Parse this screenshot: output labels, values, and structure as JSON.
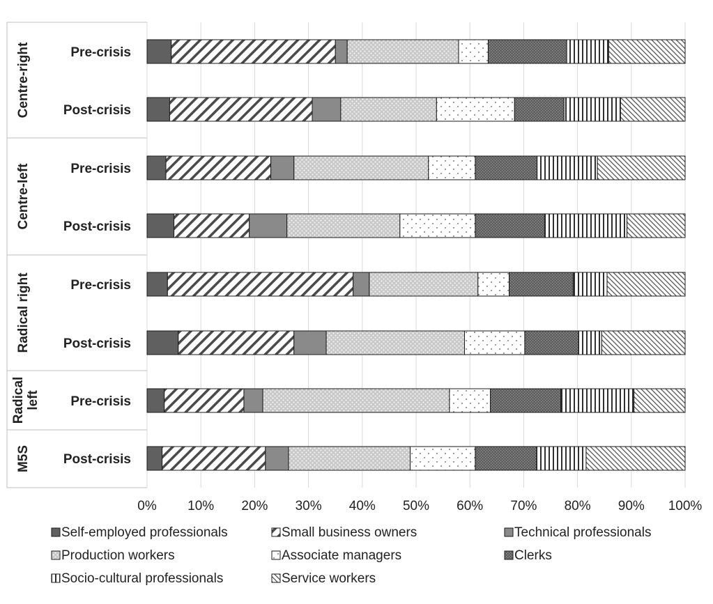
{
  "chart_data": {
    "type": "bar",
    "orientation": "horizontal",
    "stacked": "100%",
    "groups": [
      {
        "label": "Centre-right",
        "rows": [
          "Pre-crisis",
          "Post-crisis"
        ]
      },
      {
        "label": "Centre-left",
        "rows": [
          "Pre-crisis",
          "Post-crisis"
        ]
      },
      {
        "label": "Radical right",
        "rows": [
          "Pre-crisis",
          "Post-crisis"
        ]
      },
      {
        "label": "Radical left",
        "rows": [
          "Pre-crisis"
        ]
      },
      {
        "label": "M5S",
        "rows": [
          "Post-crisis"
        ]
      }
    ],
    "series": [
      {
        "name": "Self-employed professionals",
        "fill": "#606060",
        "pattern": "solid-dark",
        "values": [
          4.5,
          4.2,
          3.5,
          5.0,
          3.8,
          5.8,
          3.2,
          2.8
        ]
      },
      {
        "name": "Small business owners",
        "fill": "#ffffff",
        "pattern": "diagonal-wide",
        "values": [
          30.5,
          26.5,
          19.5,
          14.0,
          34.5,
          21.5,
          14.8,
          19.2
        ]
      },
      {
        "name": "Technical professionals",
        "fill": "#8a8a8a",
        "pattern": "solid-mid",
        "values": [
          2.2,
          5.3,
          4.3,
          7.0,
          3.0,
          6.0,
          3.5,
          4.3
        ]
      },
      {
        "name": "Production workers",
        "fill": "#c4c4c4",
        "pattern": "dotted-grid",
        "values": [
          20.7,
          17.8,
          25.0,
          21.0,
          20.2,
          25.7,
          34.7,
          22.6
        ]
      },
      {
        "name": "Associate managers",
        "fill": "#ffffff",
        "pattern": "sparse-dots",
        "values": [
          5.5,
          14.5,
          8.7,
          14.0,
          5.8,
          11.2,
          7.6,
          12.1
        ]
      },
      {
        "name": "Clerks",
        "fill": "#6e6e6e",
        "pattern": "dark-checker",
        "values": [
          14.6,
          9.2,
          11.5,
          12.9,
          11.9,
          10.0,
          13.1,
          11.4
        ]
      },
      {
        "name": "Socio-cultural professionals",
        "fill": "#ffffff",
        "pattern": "vertical-lines",
        "values": [
          7.8,
          10.5,
          11.2,
          15.3,
          6.3,
          4.3,
          13.6,
          9.2
        ]
      },
      {
        "name": "Service workers",
        "fill": "#ffffff",
        "pattern": "diagonal-fine",
        "values": [
          14.2,
          12.0,
          16.3,
          10.8,
          14.5,
          15.5,
          9.5,
          18.4
        ]
      }
    ],
    "xlim": [
      0,
      100
    ],
    "xticks": [
      "0%",
      "10%",
      "20%",
      "30%",
      "40%",
      "50%",
      "60%",
      "70%",
      "80%",
      "90%",
      "100%"
    ],
    "grid": "vertical",
    "legend_position": "bottom",
    "title": "",
    "xlabel": "",
    "ylabel": ""
  }
}
